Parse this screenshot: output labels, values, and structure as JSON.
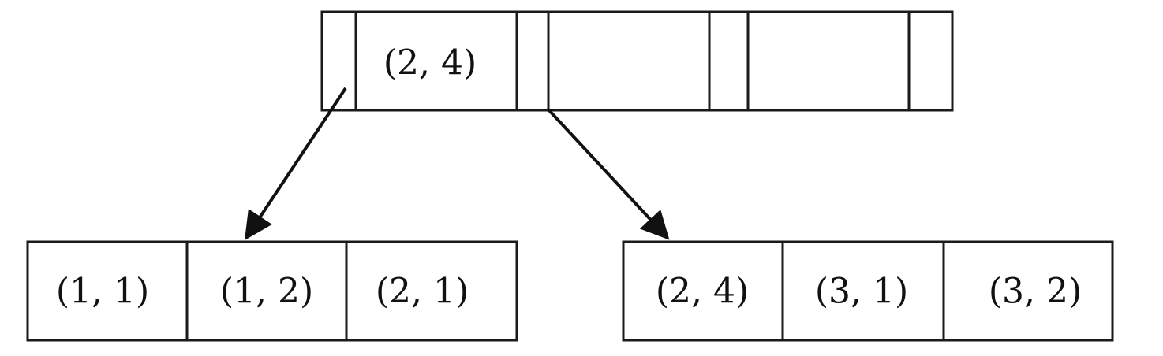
{
  "root_node": {
    "cells": [
      "",
      "(2, 4)",
      "",
      "",
      "",
      "",
      ""
    ]
  },
  "left_leaf": {
    "cells": [
      "(1, 1)",
      "(1, 2)",
      "(2, 1)"
    ]
  },
  "right_leaf": {
    "cells": [
      "(2, 4)",
      "(3, 1)",
      "(3, 2)"
    ]
  },
  "colors": {
    "stroke": "#1a1a1a",
    "text": "#111111",
    "background": "#ffffff"
  }
}
